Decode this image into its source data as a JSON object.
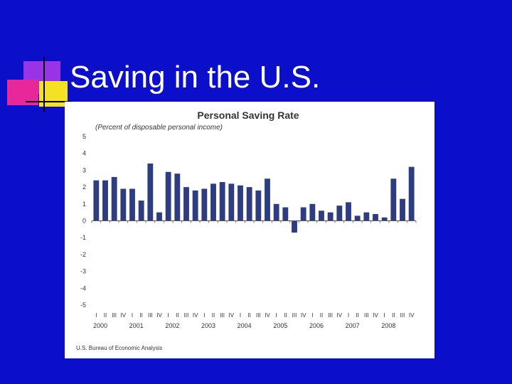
{
  "slide": {
    "title": "Saving in the U.S.",
    "background_color": "#0B0FC9",
    "title_color": "#FFFFFF",
    "decoration_colors": [
      "#F4E025",
      "#9933E6",
      "#E8289A",
      "#000000"
    ]
  },
  "chart_data": {
    "type": "bar",
    "title": "Personal Saving Rate",
    "subtitle": "(Percent of disposable personal income)",
    "source": "U.S. Bureau of Economic Analysis",
    "bar_color": "#2E3D80",
    "ylim": [
      -5,
      5
    ],
    "yticks": [
      "5",
      "4",
      "3",
      "2",
      "1",
      "0",
      "-1",
      "-2",
      "-3",
      "-4",
      "-5"
    ],
    "grid": false,
    "legend": "none",
    "quarter_labels": [
      "I",
      "II",
      "III",
      "IV"
    ],
    "year_labels": [
      "2000",
      "2001",
      "2002",
      "2003",
      "2004",
      "2005",
      "2006",
      "2007",
      "2008"
    ],
    "categories": [
      "2000 I",
      "2000 II",
      "2000 III",
      "2000 IV",
      "2001 I",
      "2001 II",
      "2001 III",
      "2001 IV",
      "2002 I",
      "2002 II",
      "2002 III",
      "2002 IV",
      "2003 I",
      "2003 II",
      "2003 III",
      "2003 IV",
      "2004 I",
      "2004 II",
      "2004 III",
      "2004 IV",
      "2005 I",
      "2005 II",
      "2005 III",
      "2005 IV",
      "2006 I",
      "2006 II",
      "2006 III",
      "2006 IV",
      "2007 I",
      "2007 II",
      "2007 III",
      "2007 IV",
      "2008 I",
      "2008 II",
      "2008 III",
      "2008 IV"
    ],
    "values": [
      2.4,
      2.4,
      2.6,
      1.9,
      1.9,
      1.2,
      3.4,
      0.5,
      2.9,
      2.8,
      2.0,
      1.8,
      1.9,
      2.2,
      2.3,
      2.2,
      2.1,
      2.0,
      1.8,
      2.5,
      1.0,
      0.8,
      -0.7,
      0.8,
      1.0,
      0.6,
      0.5,
      0.9,
      1.1,
      0.3,
      0.5,
      0.4,
      0.2,
      2.5,
      1.3,
      3.2
    ]
  }
}
